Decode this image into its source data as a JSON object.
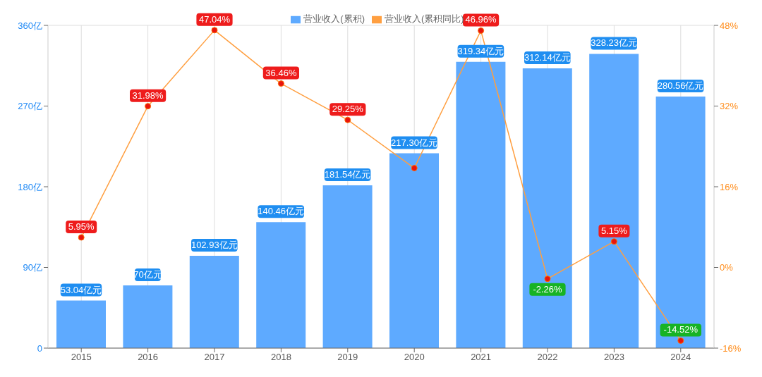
{
  "chart_data": {
    "type": "bar",
    "categories": [
      "2015",
      "2016",
      "2017",
      "2018",
      "2019",
      "2020",
      "2021",
      "2022",
      "2023",
      "2024"
    ],
    "series": [
      {
        "name": "营业收入(累积)",
        "color": "#5eaaff",
        "values": [
          53.04,
          70,
          102.93,
          140.46,
          181.54,
          217.3,
          319.34,
          312.14,
          328.23,
          280.56
        ],
        "value_labels": [
          "53.04亿元",
          "70亿元",
          "102.93亿元",
          "140.46亿元",
          "181.54亿元",
          "217.30亿元",
          "319.34亿元",
          "312.14亿元",
          "328.23亿元",
          "280.56亿元"
        ]
      },
      {
        "name": "营业收入(累积同比)",
        "type": "line",
        "axis": "y2",
        "color": "#ff9f40",
        "values": [
          5.95,
          31.98,
          47.04,
          36.46,
          29.25,
          19.7,
          46.96,
          -2.26,
          5.15,
          -14.52
        ],
        "value_labels": [
          "5.95%",
          "31.98%",
          "47.04%",
          "36.46%",
          "29.25%",
          null,
          "46.96%",
          "-2.26%",
          "5.15%",
          "-14.52%"
        ]
      }
    ],
    "ylim": [
      0,
      360
    ],
    "yticks": [
      0,
      {
        "value": 90,
        "label": "90亿"
      },
      {
        "value": 180,
        "label": "180亿"
      },
      {
        "value": 270,
        "label": "270亿"
      },
      {
        "value": 360,
        "label": "360亿"
      }
    ],
    "y2lim": [
      -16,
      48
    ],
    "y2ticks": [
      {
        "value": -16,
        "label": "-16%"
      },
      {
        "value": 0,
        "label": "0%"
      },
      {
        "value": 16,
        "label": "16%"
      },
      {
        "value": 32,
        "label": "32%"
      },
      {
        "value": 48,
        "label": "48%"
      }
    ],
    "grid": true,
    "legend": "top",
    "marker": "circle"
  }
}
